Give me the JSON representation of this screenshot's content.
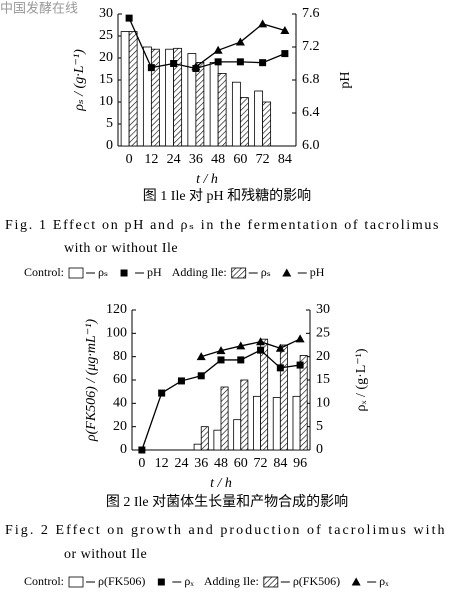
{
  "watermark": "中国发酵在线",
  "chart_data": [
    {
      "type": "combo",
      "caption_cn": "图 1  Ile 对 pH 和残糖的影响",
      "caption_en": [
        "Fig. 1    Effect on pH and ρₛ in the fermentation of tacrolimus",
        "with or without Ile"
      ],
      "x_label": "t / h",
      "y_label": "ρₛ / (g·L⁻¹)",
      "y2_label": "pH",
      "categories": [
        "0",
        "12",
        "24",
        "36",
        "48",
        "60",
        "72",
        "84"
      ],
      "ylim": [
        0,
        30
      ],
      "yticks": [
        0,
        5,
        10,
        15,
        20,
        25,
        30
      ],
      "y2lim": [
        6.0,
        7.6
      ],
      "y2ticks": [
        {
          "value": 6.0,
          "label": "6.0"
        },
        6.4,
        6.8,
        7.2,
        7.6
      ],
      "legend_groups": [
        "Control:",
        "Adding Ile:"
      ],
      "series": [
        {
          "name": "ρₛ",
          "type": "bar",
          "group": 0,
          "color": "#ffffff",
          "values": [
            26,
            22.5,
            22,
            21,
            19,
            14.5,
            12.5,
            null
          ]
        },
        {
          "name": "pH",
          "type": "line",
          "group": 0,
          "axis": "y2",
          "marker": "square",
          "color": "#000000",
          "values": [
            7.55,
            6.95,
            7.0,
            6.94,
            7.02,
            7.02,
            7.01,
            7.12
          ]
        },
        {
          "name": "ρₛ",
          "type": "bar",
          "group": 1,
          "color": "#000000",
          "pattern": "hatch",
          "values": [
            26,
            22,
            22.2,
            19,
            16.5,
            11,
            10,
            null
          ]
        },
        {
          "name": "pH",
          "type": "line",
          "group": 1,
          "axis": "y2",
          "marker": "triangle",
          "color": "#000000",
          "values": [
            null,
            null,
            null,
            6.96,
            7.16,
            7.26,
            7.48,
            7.4
          ]
        }
      ]
    },
    {
      "type": "combo",
      "caption_cn": "图 2  Ile 对菌体生长量和产物合成的影响",
      "caption_en": [
        "Fig. 2    Effect on growth and production of tacrolimus with",
        "or without Ile"
      ],
      "x_label": "t / h",
      "y_label": "ρ(FK506) / (μg·mL⁻¹)",
      "y2_label": "ρₓ / (g·L⁻¹)",
      "categories": [
        "0",
        "12",
        "24",
        "36",
        "48",
        "60",
        "72",
        "84",
        "96"
      ],
      "ylim": [
        0,
        120
      ],
      "yticks": [
        0,
        20,
        40,
        60,
        80,
        100,
        120
      ],
      "y2lim": [
        0,
        30
      ],
      "y2ticks": [
        0,
        5,
        10,
        15,
        20,
        25,
        30
      ],
      "legend_groups": [
        "Control:",
        "Adding Ile:"
      ],
      "series": [
        {
          "name": "ρ(FK506)",
          "type": "bar",
          "group": 0,
          "color": "#ffffff",
          "values": [
            null,
            null,
            null,
            5,
            17,
            26,
            46,
            45,
            46
          ]
        },
        {
          "name": "ρₓ",
          "type": "line",
          "group": 0,
          "axis": "y2",
          "marker": "square",
          "color": "#000000",
          "values": [
            0,
            12.2,
            14.8,
            15.9,
            19.3,
            19.3,
            21.4,
            17.6,
            18.2
          ]
        },
        {
          "name": "ρ(FK506)",
          "type": "bar",
          "group": 1,
          "color": "#000000",
          "pattern": "hatch",
          "values": [
            null,
            null,
            null,
            20,
            54,
            60,
            95,
            90,
            81
          ]
        },
        {
          "name": "ρₓ",
          "type": "line",
          "group": 1,
          "axis": "y2",
          "marker": "triangle",
          "color": "#000000",
          "values": [
            null,
            null,
            null,
            20,
            21.3,
            22.3,
            23.2,
            21.8,
            23.8
          ]
        }
      ]
    }
  ]
}
